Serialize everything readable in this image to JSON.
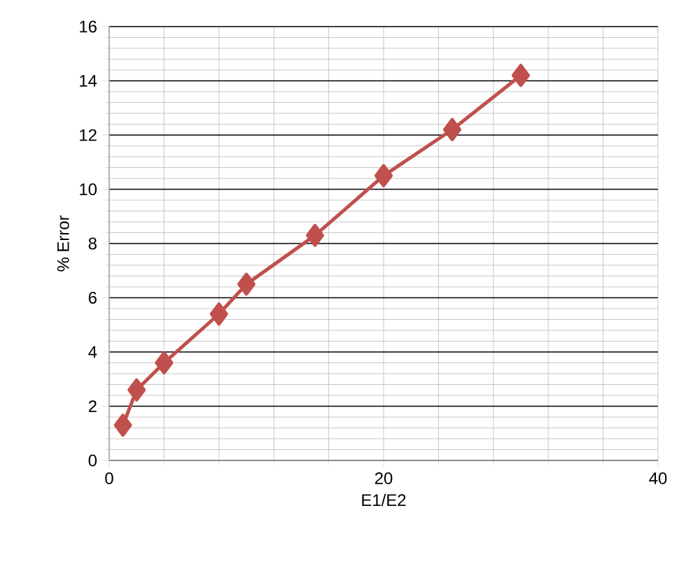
{
  "chart_data": {
    "type": "line",
    "xlabel": "E1/E2",
    "ylabel": "% Error",
    "x": [
      1,
      2,
      4,
      8,
      10,
      15,
      20,
      25,
      30
    ],
    "values": [
      1.3,
      2.6,
      3.6,
      5.4,
      6.5,
      8.3,
      10.5,
      12.2,
      14.2
    ],
    "color": "#c0504d",
    "marker": "diamond",
    "line_style": "solid",
    "xlim": [
      0,
      40
    ],
    "ylim": [
      0,
      16
    ],
    "xticks": [
      0,
      20,
      40
    ],
    "yticks": [
      0,
      2,
      4,
      6,
      8,
      10,
      12,
      14,
      16
    ],
    "grid": true
  }
}
